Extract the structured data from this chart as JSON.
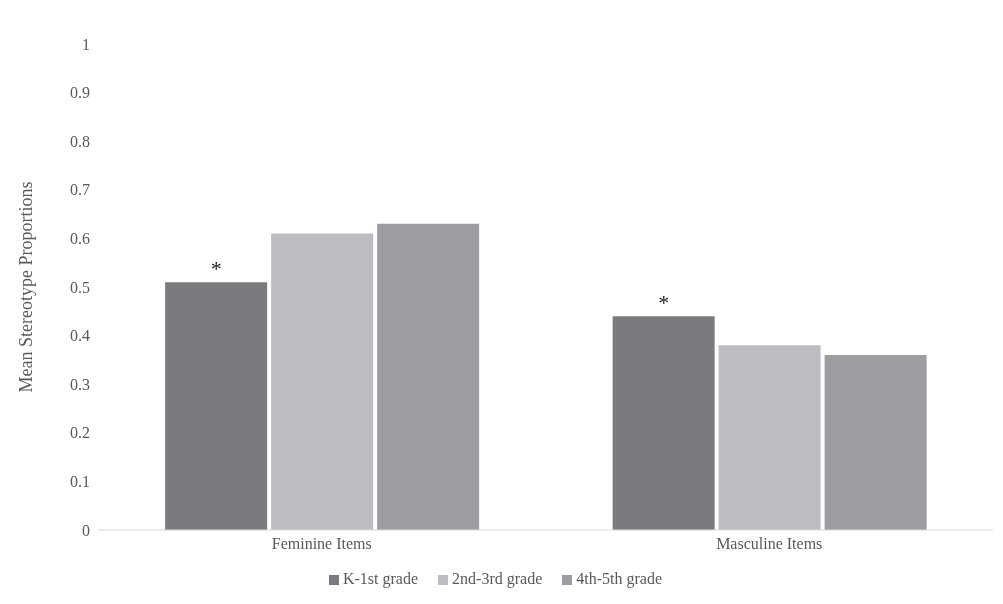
{
  "chart_data": {
    "type": "bar",
    "ylabel": "Mean  Stereotype Proportions",
    "categories": [
      "Feminine Items",
      "Masculine Items"
    ],
    "series": [
      {
        "name": "K-1st grade",
        "color": "#7b7b7f",
        "values": [
          0.51,
          0.44
        ]
      },
      {
        "name": "2nd-3rd grade",
        "color": "#bcbdc1",
        "values": [
          0.61,
          0.38
        ]
      },
      {
        "name": "4th-5th grade",
        "color": "#9c9da1",
        "values": [
          0.63,
          0.36
        ]
      }
    ],
    "ylim": [
      0,
      1
    ],
    "yticks": [
      0,
      0.1,
      0.2,
      0.3,
      0.4,
      0.5,
      0.6,
      0.7,
      0.8,
      0.9,
      1
    ],
    "grid": false,
    "legend": "bottom",
    "annotations": [
      "*",
      "*"
    ]
  }
}
